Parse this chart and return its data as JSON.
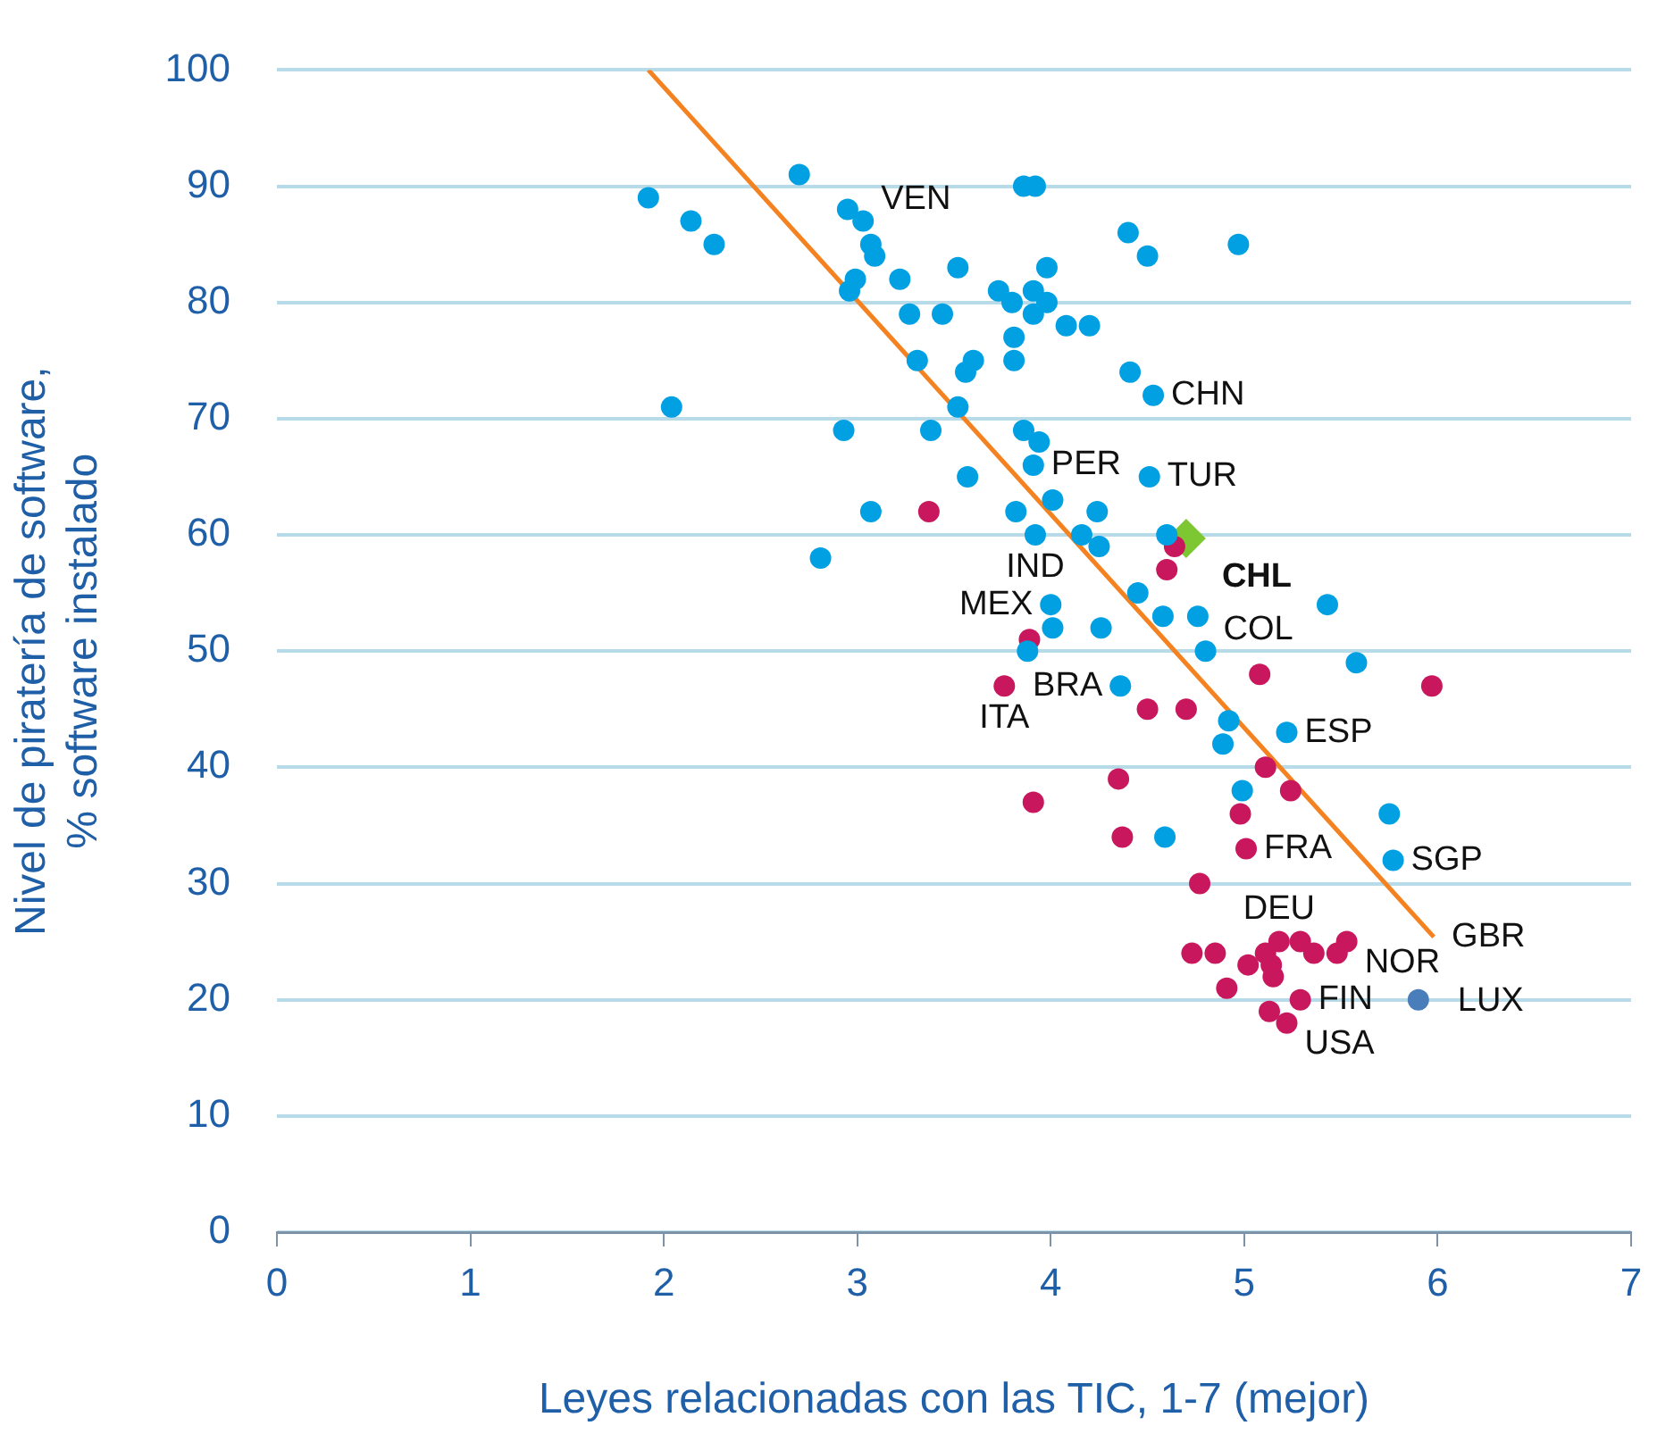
{
  "chart_data": {
    "type": "scatter",
    "xlabel": "Leyes relacionadas con las TIC, 1-7 (mejor)",
    "ylabel": "Nivel de piratería de software,\n% software instalado",
    "xlim": [
      0,
      7
    ],
    "xticks": [
      0,
      1,
      2,
      3,
      4,
      5,
      6,
      7
    ],
    "ylim": [
      0,
      100
    ],
    "yticks": [
      0,
      10,
      20,
      30,
      40,
      50,
      60,
      70,
      80,
      90,
      100
    ],
    "grid": "y",
    "legend": false,
    "series": [
      {
        "type": "scatter",
        "marker": "circle",
        "color": "#00a0e3",
        "x": [
          1.92,
          2.14,
          2.26,
          2.04,
          2.7,
          2.95,
          3.03,
          3.07,
          3.09,
          2.99,
          2.96,
          3.22,
          3.27,
          3.44,
          3.52,
          3.31,
          3.6,
          3.56,
          3.52,
          3.86,
          3.92,
          3.73,
          3.8,
          3.91,
          3.98,
          3.91,
          3.98,
          4.08,
          4.2,
          3.81,
          3.81,
          4.4,
          4.5,
          4.41,
          4.53,
          4.97,
          2.93,
          3.38,
          3.86,
          3.94,
          3.91,
          3.57,
          3.07,
          2.81,
          3.82,
          4.01,
          4.24,
          4.51,
          3.92,
          4.16,
          4.25,
          4.6,
          4.45,
          4.0,
          4.01,
          4.26,
          4.58,
          4.76,
          4.8,
          3.88,
          5.43,
          5.58,
          4.36,
          4.92,
          4.89,
          5.22,
          4.99,
          5.75,
          5.77,
          4.59
        ],
        "values": [
          89,
          87,
          85,
          71,
          91,
          88,
          87,
          85,
          84,
          82,
          81,
          82,
          79,
          79,
          83,
          75,
          75,
          74,
          71,
          90,
          90,
          81,
          80,
          81,
          80,
          79,
          83,
          78,
          78,
          77,
          75,
          86,
          84,
          74,
          72,
          85,
          69,
          69,
          69,
          68,
          66,
          65,
          62,
          58,
          62,
          63,
          62,
          65,
          60,
          60,
          59,
          60,
          55,
          54,
          52,
          52,
          53,
          53,
          50,
          50,
          54,
          49,
          47,
          44,
          42,
          43,
          38,
          36,
          32,
          34
        ]
      },
      {
        "type": "scatter",
        "marker": "circle",
        "color": "#c8175d",
        "x": [
          3.37,
          4.64,
          4.6,
          3.89,
          5.08,
          3.76,
          5.97,
          4.5,
          4.7,
          5.11,
          4.35,
          5.24,
          3.91,
          4.98,
          4.37,
          5.01,
          4.77,
          4.73,
          4.85,
          5.11,
          5.18,
          5.29,
          5.36,
          5.48,
          5.53,
          5.02,
          5.14,
          5.15,
          4.91,
          5.29,
          5.13,
          5.22
        ],
        "values": [
          62,
          59,
          57,
          51,
          48,
          47,
          47,
          45,
          45,
          40,
          39,
          38,
          37,
          36,
          34,
          33,
          30,
          24,
          24,
          24,
          25,
          25,
          24,
          24,
          25,
          23,
          23,
          22,
          21,
          20,
          19,
          18
        ]
      },
      {
        "type": "scatter",
        "name": "LUX",
        "marker": "circle",
        "color": "#4a7ebb",
        "x": [
          5.9
        ],
        "values": [
          20
        ]
      },
      {
        "type": "scatter",
        "name": "CHL",
        "marker": "diamond",
        "color": "#7dc832",
        "x": [
          4.7
        ],
        "values": [
          59.7
        ]
      },
      {
        "type": "line",
        "color": "#f58220",
        "x": [
          1.92,
          5.98
        ],
        "values": [
          100,
          25.4
        ]
      }
    ],
    "annotations": [
      {
        "text": "VEN",
        "x": 3.03,
        "y": 87
      },
      {
        "text": "CHN",
        "x": 4.53,
        "y": 72
      },
      {
        "text": "PER",
        "x": 3.91,
        "y": 66
      },
      {
        "text": "TUR",
        "x": 4.51,
        "y": 65
      },
      {
        "text": "IND",
        "x": 3.92,
        "y": 60
      },
      {
        "text": "MEX",
        "x": 4.0,
        "y": 54
      },
      {
        "text": "COL",
        "x": 4.8,
        "y": 50
      },
      {
        "text": "BRA",
        "x": 4.36,
        "y": 47
      },
      {
        "text": "ITA",
        "x": 3.76,
        "y": 47
      },
      {
        "text": "ESP",
        "x": 5.22,
        "y": 43
      },
      {
        "text": "FRA",
        "x": 5.01,
        "y": 33
      },
      {
        "text": "SGP",
        "x": 5.77,
        "y": 32
      },
      {
        "text": "DEU",
        "x": 5.18,
        "y": 25
      },
      {
        "text": "NOR",
        "x": 5.53,
        "y": 25
      },
      {
        "text": "GBR",
        "x": 5.98,
        "y": 25.4
      },
      {
        "text": "FIN",
        "x": 5.29,
        "y": 20
      },
      {
        "text": "USA",
        "x": 5.22,
        "y": 18
      }
    ]
  }
}
